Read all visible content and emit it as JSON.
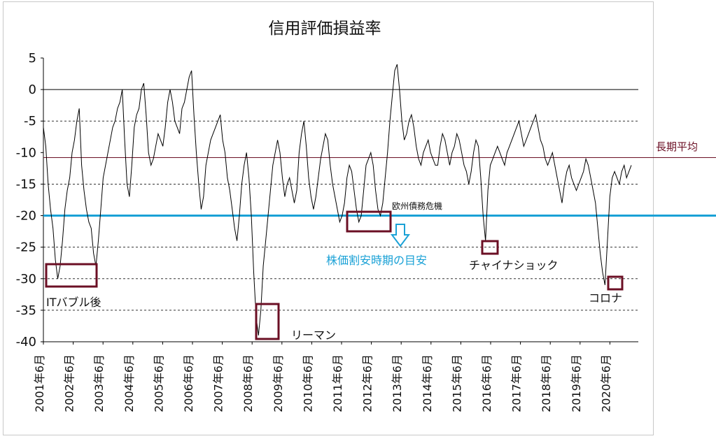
{
  "chart_data": {
    "type": "line",
    "title": "信用評価損益率",
    "xlabel": "",
    "ylabel": "",
    "ylim": [
      -40,
      5
    ],
    "yticks": [
      5,
      0,
      -5,
      -10,
      -15,
      -20,
      -25,
      -30,
      -35,
      -40
    ],
    "dashed_gridlines": [
      -5,
      -15,
      -25,
      -30,
      -35
    ],
    "x_tick_labels": [
      "2001年6月",
      "2002年6月",
      "2003年6月",
      "2004年6月",
      "2005年6月",
      "2006年6月",
      "2007年6月",
      "2008年6月",
      "2009年6月",
      "2010年6月",
      "2011年6月",
      "2012年6月",
      "2013年6月",
      "2014年6月",
      "2015年6月",
      "2016年6月",
      "2017年6月",
      "2018年6月",
      "2019年6月",
      "2020年6月"
    ],
    "series": [
      {
        "values": [
          -6,
          -9,
          -15,
          -19,
          -22,
          -27,
          -30,
          -28,
          -24,
          -19,
          -16,
          -14,
          -10,
          -8,
          -5,
          -3,
          -12,
          -16,
          -19,
          -21,
          -22,
          -26,
          -28,
          -24,
          -19,
          -14,
          -12,
          -10,
          -8,
          -6,
          -5,
          -3,
          -2,
          0,
          -8,
          -15,
          -17,
          -12,
          -6,
          -4,
          -3,
          0,
          1,
          -4,
          -10,
          -12,
          -11,
          -9,
          -7,
          -8,
          -9,
          -6,
          -2,
          0,
          -2,
          -5,
          -6,
          -7,
          -3,
          -2,
          0,
          2,
          3,
          -4,
          -10,
          -15,
          -19,
          -17,
          -12,
          -10,
          -8,
          -7,
          -6,
          -5,
          -4,
          -8,
          -10,
          -14,
          -16,
          -19,
          -22,
          -24,
          -20,
          -15,
          -12,
          -10,
          -14,
          -20,
          -29,
          -36,
          -39,
          -35,
          -28,
          -24,
          -20,
          -16,
          -12,
          -10,
          -8,
          -10,
          -14,
          -17,
          -15,
          -14,
          -16,
          -18,
          -16,
          -10,
          -7,
          -5,
          -9,
          -14,
          -17,
          -19,
          -17,
          -14,
          -11,
          -9,
          -7,
          -8,
          -12,
          -15,
          -17,
          -19,
          -21,
          -20,
          -18,
          -14,
          -12,
          -13,
          -16,
          -19,
          -21,
          -20,
          -16,
          -12,
          -11,
          -10,
          -12,
          -16,
          -19,
          -20,
          -18,
          -14,
          -10,
          -5,
          -1,
          3,
          4,
          0,
          -5,
          -8,
          -7,
          -5,
          -4,
          -6,
          -9,
          -11,
          -12,
          -10,
          -9,
          -8,
          -10,
          -11,
          -12,
          -12,
          -9,
          -7,
          -8,
          -10,
          -12,
          -10,
          -9,
          -7,
          -8,
          -10,
          -12,
          -13,
          -15,
          -13,
          -10,
          -8,
          -9,
          -14,
          -20,
          -24,
          -16,
          -12,
          -11,
          -10,
          -9,
          -10,
          -11,
          -12,
          -10,
          -9,
          -8,
          -7,
          -6,
          -5,
          -7,
          -9,
          -8,
          -7,
          -6,
          -5,
          -4,
          -6,
          -8,
          -9,
          -11,
          -12,
          -11,
          -10,
          -12,
          -14,
          -16,
          -18,
          -15,
          -13,
          -12,
          -14,
          -15,
          -16,
          -15,
          -14,
          -13,
          -11,
          -12,
          -14,
          -16,
          -18,
          -22,
          -26,
          -29,
          -31,
          -24,
          -17,
          -14,
          -13,
          -14,
          -15,
          -13,
          -12,
          -14,
          -13,
          -12
        ],
        "color": "#000000"
      }
    ],
    "reference_lines": [
      {
        "label": "長期平均",
        "value": -10.8,
        "color": "#6b0f24"
      },
      {
        "label": "株価割安時期の目安",
        "value": -20,
        "color": "#1aa1d6"
      }
    ],
    "annotations": [
      {
        "text": "ITバブル後",
        "color": "#111111"
      },
      {
        "text": "リーマン",
        "color": "#111111"
      },
      {
        "text": "欧州債務危機",
        "color": "#111111"
      },
      {
        "text": "株価割安時期の目安",
        "color": "#1aa1d6"
      },
      {
        "text": "チャイナショック",
        "color": "#111111"
      },
      {
        "text": "コロナ",
        "color": "#111111"
      },
      {
        "text": "長期平均",
        "color": "#6b0f24"
      }
    ],
    "grid": true,
    "legend": "none"
  }
}
